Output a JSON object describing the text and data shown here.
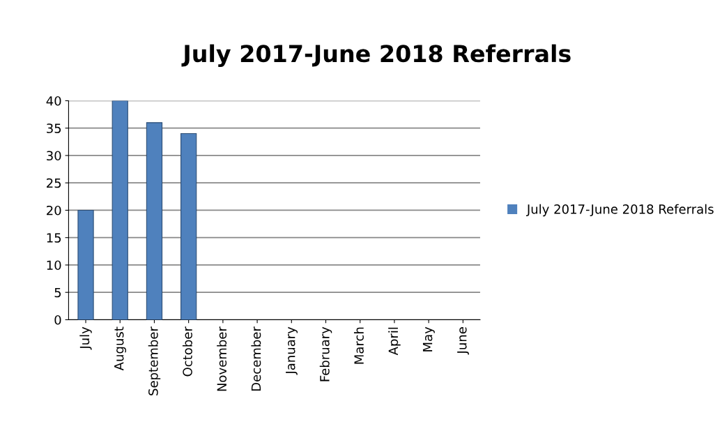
{
  "chart_data": {
    "type": "bar",
    "title": "July 2017-June 2018 Referrals",
    "categories": [
      "July",
      "August",
      "September",
      "October",
      "November",
      "December",
      "January",
      "February",
      "March",
      "April",
      "May",
      "June"
    ],
    "series": [
      {
        "name": "July 2017-June 2018 Referrals",
        "color": "#4f81bd",
        "values": [
          20,
          40,
          36,
          34,
          null,
          null,
          null,
          null,
          null,
          null,
          null,
          null
        ]
      }
    ],
    "ylim": [
      0,
      40
    ],
    "yticks": [
      0,
      5,
      10,
      15,
      20,
      25,
      30,
      35,
      40
    ],
    "grid": "y",
    "legend": "right"
  }
}
